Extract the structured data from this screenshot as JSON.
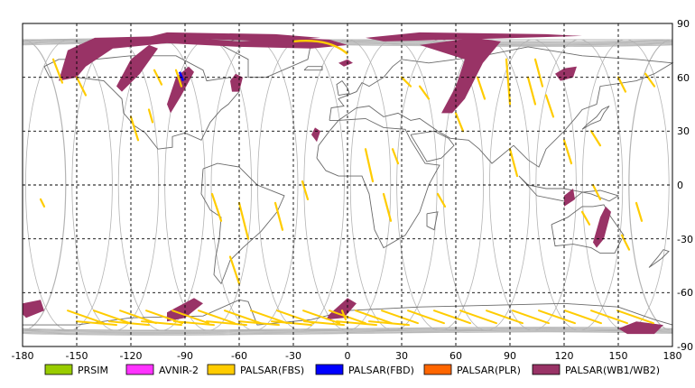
{
  "map": {
    "lon_ticks": [
      -180,
      -150,
      -120,
      -90,
      -60,
      -30,
      0,
      30,
      60,
      90,
      120,
      150,
      180
    ],
    "lat_ticks": [
      90,
      60,
      30,
      0,
      -30,
      -60,
      -90
    ],
    "lon_tick_labels": [
      "-180",
      "-150",
      "-120",
      "-90",
      "-60",
      "-30",
      "0",
      "30",
      "60",
      "90",
      "120",
      "150",
      "180"
    ],
    "lat_tick_labels": [
      "90",
      "60",
      "30",
      "0",
      "-30",
      "-60",
      "-90"
    ],
    "lon_range": [
      -180,
      180
    ],
    "lat_range": [
      -90,
      90
    ],
    "grid": "dashed",
    "sensor_colors": {
      "PRSIM": "#99cc00",
      "AVNIR-2": "#ff33ff",
      "PALSAR(FBS)": "#ffcc00",
      "PALSAR(FBD)": "#0000ff",
      "PALSAR(PLR)": "#ff6600",
      "PALSAR(WB1/WB2)": "#993366"
    },
    "colors": {
      "orbit": "#b4b4b4",
      "coast": "#6a6a6a",
      "frame_border": "#000000"
    }
  },
  "legend": {
    "items": [
      {
        "label": "PRSIM",
        "color": "#99cc00"
      },
      {
        "label": "AVNIR-2",
        "color": "#ff33ff"
      },
      {
        "label": "PALSAR(FBS)",
        "color": "#ffcc00"
      },
      {
        "label": "PALSAR(FBD)",
        "color": "#0000ff"
      },
      {
        "label": "PALSAR(PLR)",
        "color": "#ff6600"
      },
      {
        "label": "PALSAR(WB1/WB2)",
        "color": "#993366"
      }
    ]
  }
}
